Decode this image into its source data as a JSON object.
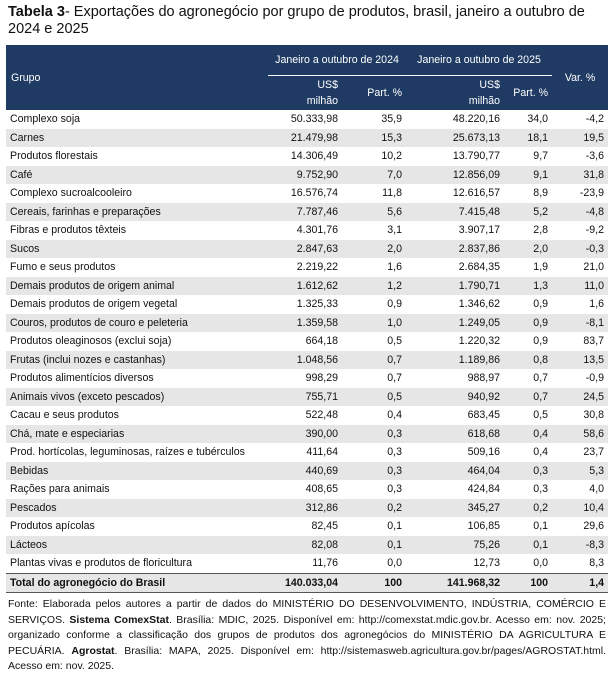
{
  "title": {
    "label": "Tabela 3",
    "text": "- Exportações do agronegócio por grupo de produtos, brasil, janeiro a outubro de 2024 e 2025"
  },
  "table": {
    "header": {
      "group": "Grupo",
      "period_2024": "Janeiro a outubro de 2024",
      "period_2025": "Janeiro a outubro de 2025",
      "var": "Var. %",
      "sub": [
        "US$ milhão",
        "Part. %",
        "US$ milhão",
        "Part. %"
      ]
    },
    "rows": [
      [
        "Complexo soja",
        "50.333,98",
        "35,9",
        "48.220,16",
        "34,0",
        "-4,2"
      ],
      [
        "Carnes",
        "21.479,98",
        "15,3",
        "25.673,13",
        "18,1",
        "19,5"
      ],
      [
        "Produtos florestais",
        "14.306,49",
        "10,2",
        "13.790,77",
        "9,7",
        "-3,6"
      ],
      [
        "Café",
        "9.752,90",
        "7,0",
        "12.856,09",
        "9,1",
        "31,8"
      ],
      [
        "Complexo sucroalcooleiro",
        "16.576,74",
        "11,8",
        "12.616,57",
        "8,9",
        "-23,9"
      ],
      [
        "Cereais, farinhas e preparações",
        "7.787,46",
        "5,6",
        "7.415,48",
        "5,2",
        "-4,8"
      ],
      [
        "Fibras e produtos têxteis",
        "4.301,76",
        "3,1",
        "3.907,17",
        "2,8",
        "-9,2"
      ],
      [
        "Sucos",
        "2.847,63",
        "2,0",
        "2.837,86",
        "2,0",
        "-0,3"
      ],
      [
        "Fumo e seus produtos",
        "2.219,22",
        "1,6",
        "2.684,35",
        "1,9",
        "21,0"
      ],
      [
        "Demais produtos de origem animal",
        "1.612,62",
        "1,2",
        "1.790,71",
        "1,3",
        "11,0"
      ],
      [
        "Demais produtos de origem vegetal",
        "1.325,33",
        "0,9",
        "1.346,62",
        "0,9",
        "1,6"
      ],
      [
        "Couros, produtos de couro e peleteria",
        "1.359,58",
        "1,0",
        "1.249,05",
        "0,9",
        "-8,1"
      ],
      [
        "Produtos oleaginosos (exclui soja)",
        "664,18",
        "0,5",
        "1.220,32",
        "0,9",
        "83,7"
      ],
      [
        "Frutas (inclui nozes e castanhas)",
        "1.048,56",
        "0,7",
        "1.189,86",
        "0,8",
        "13,5"
      ],
      [
        "Produtos alimentícios diversos",
        "998,29",
        "0,7",
        "988,97",
        "0,7",
        "-0,9"
      ],
      [
        "Animais vivos (exceto pescados)",
        "755,71",
        "0,5",
        "940,92",
        "0,7",
        "24,5"
      ],
      [
        "Cacau e seus produtos",
        "522,48",
        "0,4",
        "683,45",
        "0,5",
        "30,8"
      ],
      [
        "Chá, mate e especiarias",
        "390,00",
        "0,3",
        "618,68",
        "0,4",
        "58,6"
      ],
      [
        "Prod. hortícolas, leguminosas, raízes e tubérculos",
        "411,64",
        "0,3",
        "509,16",
        "0,4",
        "23,7"
      ],
      [
        "Bebidas",
        "440,69",
        "0,3",
        "464,04",
        "0,3",
        "5,3"
      ],
      [
        "Rações para animais",
        "408,65",
        "0,3",
        "424,84",
        "0,3",
        "4,0"
      ],
      [
        "Pescados",
        "312,86",
        "0,2",
        "345,27",
        "0,2",
        "10,4"
      ],
      [
        "Produtos apícolas",
        "82,45",
        "0,1",
        "106,85",
        "0,1",
        "29,6"
      ],
      [
        "Lácteos",
        "82,08",
        "0,1",
        "75,26",
        "0,1",
        "-8,3"
      ],
      [
        "Plantas vivas e produtos de floricultura",
        "11,76",
        "0,0",
        "12,73",
        "0,0",
        "8,3"
      ]
    ],
    "total": [
      "Total do agronegócio do Brasil",
      "140.033,04",
      "100",
      "141.968,32",
      "100",
      "1,4"
    ]
  },
  "footer": [
    "Fonte: Elaborada pelos autores a partir de dados do MINISTÉRIO DO DESENVOLVIMENTO, INDÚSTRIA, COMÉRCIO E SERVIÇOS. ",
    "Sistema ComexStat",
    ". Brasília: MDIC, 2025. Disponível em: http://comexstat.mdic.gov.br. Acesso em: nov. 2025; organizado conforme a classificação dos grupos de produtos dos agronegócios do MINISTÉRIO DA AGRICULTURA E PECUÁRIA. ",
    "Agrostat",
    ". Brasília: MAPA, 2025. Disponível em: http://sistemasweb.agricultura.gov.br/pages/AGROSTAT.html. Acesso em: nov. 2025."
  ]
}
